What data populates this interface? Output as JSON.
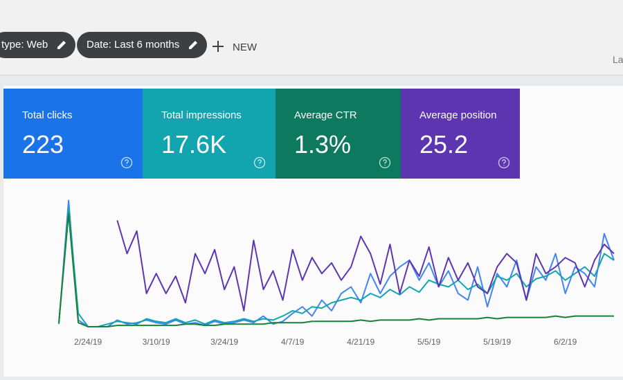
{
  "filters": [
    "type: Web",
    "Date: Last 6 months"
  ],
  "new_button": "NEW",
  "corner_text": "La",
  "cards": [
    {
      "label": "Total clicks",
      "value": "223"
    },
    {
      "label": "Total impressions",
      "value": "17.6K"
    },
    {
      "label": "Average CTR",
      "value": "1.3%"
    },
    {
      "label": "Average position",
      "value": "25.2"
    }
  ],
  "chart_data": {
    "type": "line",
    "categories": [
      null,
      null,
      null,
      "2/24/19",
      null,
      null,
      null,
      null,
      null,
      null,
      "3/10/19",
      null,
      null,
      null,
      null,
      null,
      null,
      "3/24/19",
      null,
      null,
      null,
      null,
      null,
      null,
      "4/7/19",
      null,
      null,
      null,
      null,
      null,
      null,
      "4/21/19",
      null,
      null,
      null,
      null,
      null,
      null,
      "5/5/19",
      null,
      null,
      null,
      null,
      null,
      null,
      "5/19/19",
      null,
      null,
      null,
      null,
      null,
      null,
      "6/2/19",
      null,
      null,
      null,
      null,
      null
    ],
    "ylim": [
      0,
      100
    ],
    "series": [
      {
        "name": "Total clicks",
        "color": "#4285f4",
        "values": [
          2,
          95,
          5,
          0,
          0,
          0,
          5,
          2,
          3,
          5,
          3,
          2,
          5,
          2,
          3,
          1,
          4,
          2,
          3,
          5,
          3,
          8,
          2,
          4,
          10,
          15,
          8,
          20,
          12,
          25,
          30,
          18,
          40,
          25,
          38,
          45,
          50,
          35,
          48,
          30,
          42,
          25,
          20,
          45,
          15,
          40,
          30,
          50,
          20,
          45,
          35,
          55,
          25,
          45,
          40,
          30,
          70,
          50
        ]
      },
      {
        "name": "Total impressions",
        "color": "#12a4af",
        "values": [
          2,
          90,
          10,
          0,
          0,
          2,
          4,
          3,
          2,
          6,
          4,
          3,
          6,
          3,
          5,
          2,
          5,
          3,
          4,
          6,
          4,
          6,
          5,
          8,
          12,
          10,
          15,
          14,
          18,
          20,
          22,
          20,
          25,
          22,
          28,
          24,
          30,
          26,
          35,
          32,
          30,
          35,
          28,
          32,
          25,
          38,
          35,
          40,
          30,
          36,
          38,
          42,
          35,
          40,
          45,
          38,
          55,
          50
        ]
      },
      {
        "name": "Average CTR",
        "color": "#188038",
        "values": [
          3,
          85,
          3,
          0,
          0,
          0,
          1,
          1,
          1,
          1,
          1,
          1,
          1,
          2,
          2,
          1,
          1,
          2,
          2,
          2,
          2,
          2,
          3,
          3,
          3,
          3,
          4,
          4,
          4,
          4,
          4,
          5,
          4,
          5,
          5,
          5,
          5,
          6,
          5,
          6,
          6,
          6,
          6,
          6,
          7,
          6,
          7,
          7,
          7,
          7,
          7,
          8,
          7,
          8,
          8,
          8,
          8,
          8
        ]
      },
      {
        "name": "Average position",
        "color": "#5e35b1",
        "values": [
          null,
          null,
          null,
          null,
          null,
          null,
          80,
          55,
          72,
          25,
          40,
          25,
          38,
          18,
          55,
          40,
          58,
          28,
          45,
          12,
          65,
          28,
          42,
          20,
          58,
          35,
          52,
          40,
          48,
          35,
          45,
          68,
          55,
          32,
          62,
          25,
          50,
          38,
          60,
          30,
          52,
          35,
          48,
          30,
          25,
          45,
          55,
          48,
          20,
          55,
          40,
          45,
          52,
          48,
          30,
          50,
          62,
          55
        ]
      }
    ]
  }
}
